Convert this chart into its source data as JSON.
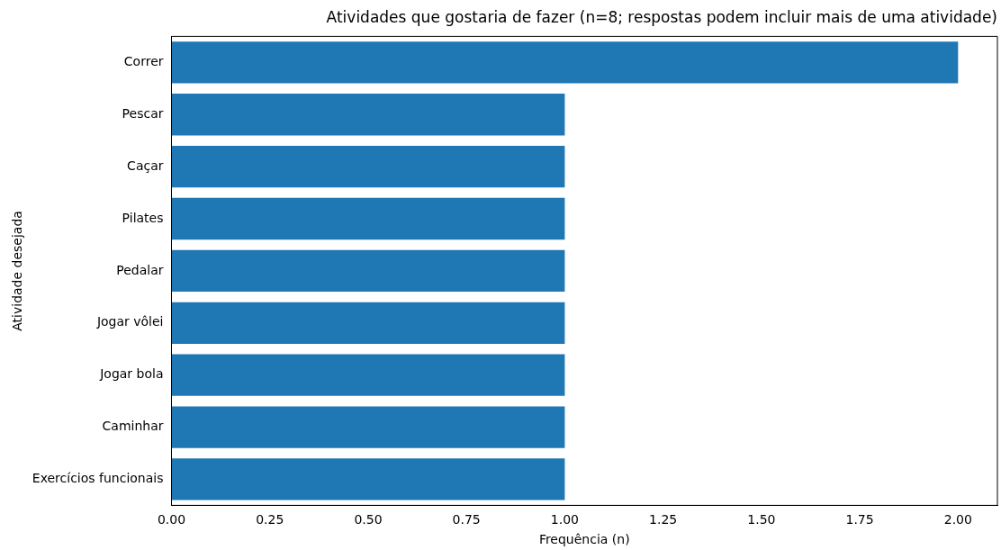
{
  "chart_data": {
    "type": "bar",
    "orientation": "horizontal",
    "title": "Atividades que gostaria de fazer (n=8; respostas podem incluir mais de uma atividade)",
    "xlabel": "Frequência (n)",
    "ylabel": "Atividade desejada",
    "categories": [
      "Correr",
      "Pescar",
      "Caçar",
      "Pilates",
      "Pedalar",
      "Jogar vôlei",
      "Jogar bola",
      "Caminhar",
      "Exercícios funcionais"
    ],
    "values": [
      2,
      1,
      1,
      1,
      1,
      1,
      1,
      1,
      1
    ],
    "color": "#1f77b4",
    "xlim": [
      0,
      2.1
    ],
    "xticks": [
      {
        "value": 0,
        "label": "0.00"
      },
      {
        "value": 0.25,
        "label": "0.25"
      },
      {
        "value": 0.5,
        "label": "0.50"
      },
      {
        "value": 0.75,
        "label": "0.75"
      },
      {
        "value": 1,
        "label": "1.00"
      },
      {
        "value": 1.25,
        "label": "1.25"
      },
      {
        "value": 1.5,
        "label": "1.50"
      },
      {
        "value": 1.75,
        "label": "1.75"
      },
      {
        "value": 2,
        "label": "2.00"
      }
    ],
    "grid": false,
    "legend": false
  }
}
